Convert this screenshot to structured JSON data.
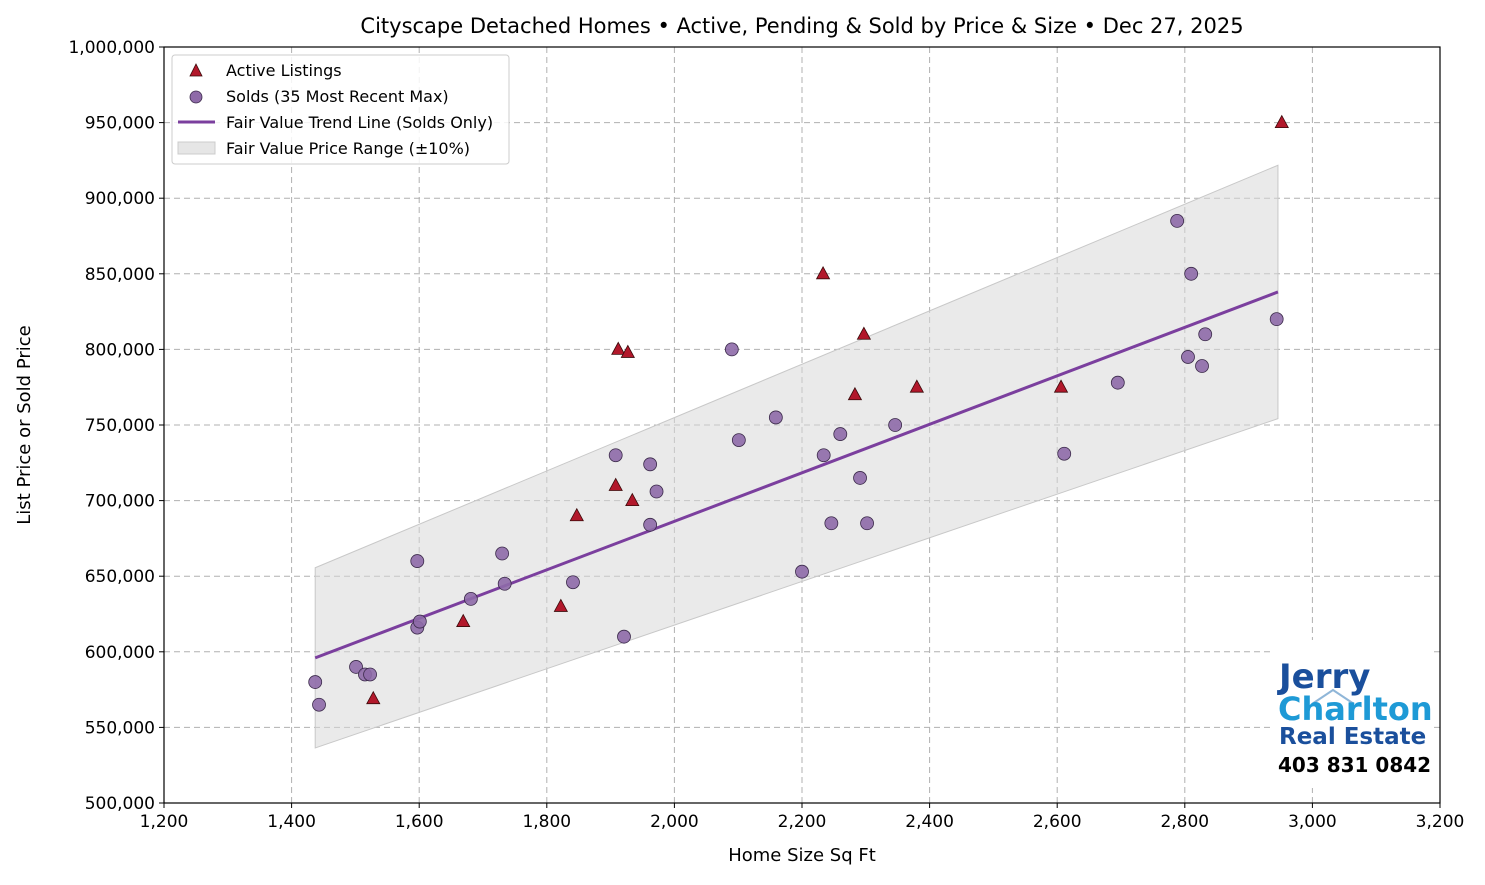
{
  "chart_data": {
    "type": "scatter",
    "title": "Cityscape Detached Homes • Active, Pending & Sold by Price & Size • Dec 27, 2025",
    "xlabel": "Home Size Sq Ft",
    "ylabel": "List Price or Sold Price",
    "xlim": [
      1200,
      3200
    ],
    "ylim": [
      500000,
      1000000
    ],
    "x_ticks": [
      "1,200",
      "1,400",
      "1,600",
      "1,800",
      "2,000",
      "2,200",
      "2,400",
      "2,600",
      "2,800",
      "3,000",
      "3,200"
    ],
    "y_ticks": [
      "500,000",
      "550,000",
      "600,000",
      "650,000",
      "700,000",
      "750,000",
      "800,000",
      "850,000",
      "900,000",
      "950,000",
      "1,000,000"
    ],
    "grid": true,
    "legend_placement": "upper-left",
    "colors": {
      "active": "#b2182b",
      "sold": "#8e6aa8",
      "trend": "#7b3f9e",
      "band": "#d9d9d9"
    },
    "series": [
      {
        "name": "Active Listings",
        "marker": "triangle",
        "points": [
          [
            2952,
            950000
          ],
          [
            2233,
            850000
          ],
          [
            1912,
            800000
          ],
          [
            1927,
            798000
          ],
          [
            2297,
            810000
          ],
          [
            2283,
            770000
          ],
          [
            2380,
            775000
          ],
          [
            2606,
            775000
          ],
          [
            1908,
            710000
          ],
          [
            1934,
            700000
          ],
          [
            1847,
            690000
          ],
          [
            1822,
            630000
          ],
          [
            1669,
            620000
          ],
          [
            1528,
            569000
          ]
        ]
      },
      {
        "name": "Solds (35 Most Recent Max)",
        "marker": "circle",
        "points": [
          [
            1437,
            580000
          ],
          [
            1443,
            565000
          ],
          [
            1501,
            590000
          ],
          [
            1515,
            585000
          ],
          [
            1523,
            585000
          ],
          [
            1597,
            660000
          ],
          [
            1597,
            616000
          ],
          [
            1601,
            620000
          ],
          [
            1681,
            635000
          ],
          [
            1730,
            665000
          ],
          [
            1734,
            645000
          ],
          [
            1841,
            646000
          ],
          [
            1908,
            730000
          ],
          [
            1921,
            610000
          ],
          [
            1962,
            724000
          ],
          [
            1972,
            706000
          ],
          [
            1962,
            684000
          ],
          [
            2090,
            800000
          ],
          [
            2101,
            740000
          ],
          [
            2159,
            755000
          ],
          [
            2200,
            653000
          ],
          [
            2234,
            730000
          ],
          [
            2246,
            685000
          ],
          [
            2260,
            744000
          ],
          [
            2291,
            715000
          ],
          [
            2302,
            685000
          ],
          [
            2346,
            750000
          ],
          [
            2611,
            731000
          ],
          [
            2695,
            778000
          ],
          [
            2788,
            885000
          ],
          [
            2810,
            850000
          ],
          [
            2805,
            795000
          ],
          [
            2832,
            810000
          ],
          [
            2827,
            789000
          ],
          [
            2944,
            820000
          ]
        ]
      },
      {
        "name": "Fair Value Trend Line (Solds Only)",
        "type": "line",
        "points": [
          [
            1437,
            596000
          ],
          [
            2946,
            838000
          ]
        ]
      },
      {
        "name": "Fair Value Price Range (±10%)",
        "type": "band",
        "band_pct": 10
      }
    ]
  },
  "logo": {
    "line1": "Jerry",
    "line2": "Charlton",
    "line3": "Real Estate",
    "phone": "403 831 0842"
  }
}
